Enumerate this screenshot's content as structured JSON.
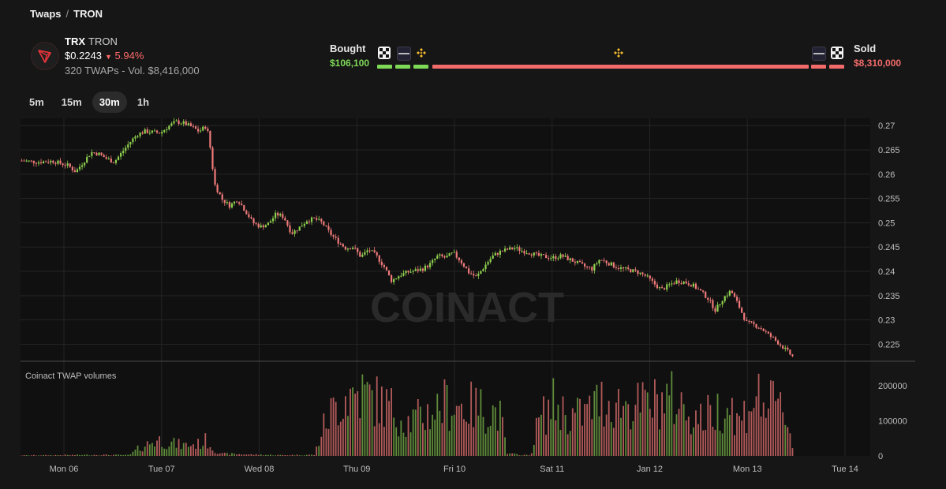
{
  "breadcrumb": {
    "root": "Twaps",
    "separator": "/",
    "current": "TRON"
  },
  "token": {
    "symbol": "TRX",
    "name": "TRON",
    "price": "$0.2243",
    "change": "5.94%",
    "change_direction": "down",
    "twaps_line": "320 TWAPs - Vol. $8,416,000",
    "logo_icon": "tron-logo-icon",
    "accent_color": "#e0343a"
  },
  "flow": {
    "bought_label": "Bought",
    "bought_value": "$106,100",
    "sold_label": "Sold",
    "sold_value": "$8,310,000",
    "bought_color": "#7ed957",
    "sold_color": "#f26b6b",
    "exchanges": [
      "okx-icon",
      "bybit-icon",
      "binance-icon",
      "binance-icon",
      "bybit-icon",
      "okx-icon"
    ]
  },
  "timeframes": {
    "options": [
      "5m",
      "15m",
      "30m",
      "1h"
    ],
    "selected": "30m"
  },
  "chart_data": {
    "type": "candlestick",
    "watermark": "COINACT",
    "volume_label": "Coinact TWAP volumes",
    "x_ticks": [
      "Mon 06",
      "Tue 07",
      "Wed 08",
      "Thu 09",
      "Fri 10",
      "Sat 11",
      "Jan 12",
      "Mon 13",
      "Tue 14"
    ],
    "price_ticks": [
      "0.27",
      "0.265",
      "0.26",
      "0.255",
      "0.25",
      "0.245",
      "0.24",
      "0.235",
      "0.23",
      "0.225"
    ],
    "volume_ticks": [
      "200000",
      "100000",
      "0"
    ],
    "price_range": [
      0.2215,
      0.2715
    ],
    "volume_range": [
      0,
      270000
    ],
    "up_color": "#8fd14f",
    "down_color": "#f07a7a",
    "price_path": [
      [
        0,
        0.2628
      ],
      [
        2,
        0.2625
      ],
      [
        4,
        0.2627
      ],
      [
        6,
        0.2618
      ],
      [
        7,
        0.2605
      ],
      [
        8,
        0.2625
      ],
      [
        9,
        0.2645
      ],
      [
        10,
        0.2642
      ],
      [
        11,
        0.2632
      ],
      [
        12,
        0.2625
      ],
      [
        13,
        0.2645
      ],
      [
        14,
        0.2665
      ],
      [
        15,
        0.2682
      ],
      [
        16,
        0.2688
      ],
      [
        18,
        0.2685
      ],
      [
        19,
        0.2698
      ],
      [
        20,
        0.2708
      ],
      [
        21,
        0.2705
      ],
      [
        22,
        0.2698
      ],
      [
        23,
        0.2688
      ],
      [
        24,
        0.27
      ],
      [
        24.5,
        0.265
      ],
      [
        25,
        0.258
      ],
      [
        26,
        0.2548
      ],
      [
        27,
        0.2535
      ],
      [
        28,
        0.2548
      ],
      [
        29,
        0.2525
      ],
      [
        30,
        0.25
      ],
      [
        31,
        0.2492
      ],
      [
        32,
        0.2498
      ],
      [
        33,
        0.2518
      ],
      [
        34,
        0.2512
      ],
      [
        35,
        0.2478
      ],
      [
        36,
        0.249
      ],
      [
        37,
        0.2505
      ],
      [
        38,
        0.2508
      ],
      [
        39,
        0.25
      ],
      [
        40,
        0.2478
      ],
      [
        41,
        0.2462
      ],
      [
        42,
        0.2448
      ],
      [
        43,
        0.245
      ],
      [
        44,
        0.243
      ],
      [
        45,
        0.2445
      ],
      [
        46,
        0.2432
      ],
      [
        47,
        0.241
      ],
      [
        48,
        0.238
      ],
      [
        49,
        0.2392
      ],
      [
        50,
        0.2398
      ],
      [
        52,
        0.2405
      ],
      [
        53,
        0.2415
      ],
      [
        54,
        0.2432
      ],
      [
        55,
        0.2428
      ],
      [
        56,
        0.2438
      ],
      [
        57,
        0.242
      ],
      [
        58,
        0.2398
      ],
      [
        59,
        0.2388
      ],
      [
        60,
        0.241
      ],
      [
        61,
        0.243
      ],
      [
        62,
        0.244
      ],
      [
        63,
        0.2445
      ],
      [
        64,
        0.2448
      ],
      [
        65,
        0.2442
      ],
      [
        66,
        0.2438
      ],
      [
        67,
        0.2432
      ],
      [
        68,
        0.243
      ],
      [
        69,
        0.2428
      ],
      [
        70,
        0.2432
      ],
      [
        71,
        0.2425
      ],
      [
        72,
        0.2418
      ],
      [
        73,
        0.241
      ],
      [
        74,
        0.2405
      ],
      [
        75,
        0.2425
      ],
      [
        76,
        0.2418
      ],
      [
        77,
        0.241
      ],
      [
        78,
        0.2405
      ],
      [
        79,
        0.2402
      ],
      [
        80,
        0.2398
      ],
      [
        81,
        0.239
      ],
      [
        82,
        0.2375
      ],
      [
        83,
        0.2362
      ],
      [
        84,
        0.2372
      ],
      [
        85,
        0.238
      ],
      [
        86,
        0.2378
      ],
      [
        87,
        0.2372
      ],
      [
        88,
        0.236
      ],
      [
        89,
        0.2345
      ],
      [
        90,
        0.232
      ],
      [
        91,
        0.2345
      ],
      [
        92,
        0.236
      ],
      [
        93,
        0.233
      ],
      [
        94,
        0.2295
      ],
      [
        95,
        0.229
      ],
      [
        96,
        0.2282
      ],
      [
        97,
        0.2268
      ],
      [
        98,
        0.2255
      ],
      [
        99,
        0.224
      ],
      [
        100,
        0.2225
      ]
    ],
    "volume_profile": [
      [
        0,
        2000
      ],
      [
        10,
        4000
      ],
      [
        14,
        3000
      ],
      [
        15,
        25000
      ],
      [
        17,
        55000
      ],
      [
        18,
        60000
      ],
      [
        19,
        50000
      ],
      [
        21,
        40000
      ],
      [
        23,
        45000
      ],
      [
        24,
        60000
      ],
      [
        25,
        20000
      ],
      [
        26,
        8000
      ],
      [
        30,
        5000
      ],
      [
        33,
        3000
      ],
      [
        38,
        4000
      ],
      [
        39,
        100000
      ],
      [
        40,
        160000
      ],
      [
        42,
        230000
      ],
      [
        44,
        240000
      ],
      [
        46,
        210000
      ],
      [
        48,
        180000
      ],
      [
        50,
        130000
      ],
      [
        52,
        150000
      ],
      [
        55,
        200000
      ],
      [
        57,
        190000
      ],
      [
        60,
        180000
      ],
      [
        62,
        160000
      ],
      [
        63,
        8000
      ],
      [
        66,
        2000
      ],
      [
        67,
        130000
      ],
      [
        69,
        200000
      ],
      [
        71,
        150000
      ],
      [
        73,
        160000
      ],
      [
        75,
        210000
      ],
      [
        77,
        200000
      ],
      [
        80,
        190000
      ],
      [
        82,
        200000
      ],
      [
        84,
        220000
      ],
      [
        86,
        180000
      ],
      [
        88,
        140000
      ],
      [
        90,
        170000
      ],
      [
        92,
        200000
      ],
      [
        93,
        120000
      ],
      [
        95,
        230000
      ],
      [
        97,
        190000
      ],
      [
        99,
        180000
      ],
      [
        100,
        40000
      ]
    ]
  }
}
